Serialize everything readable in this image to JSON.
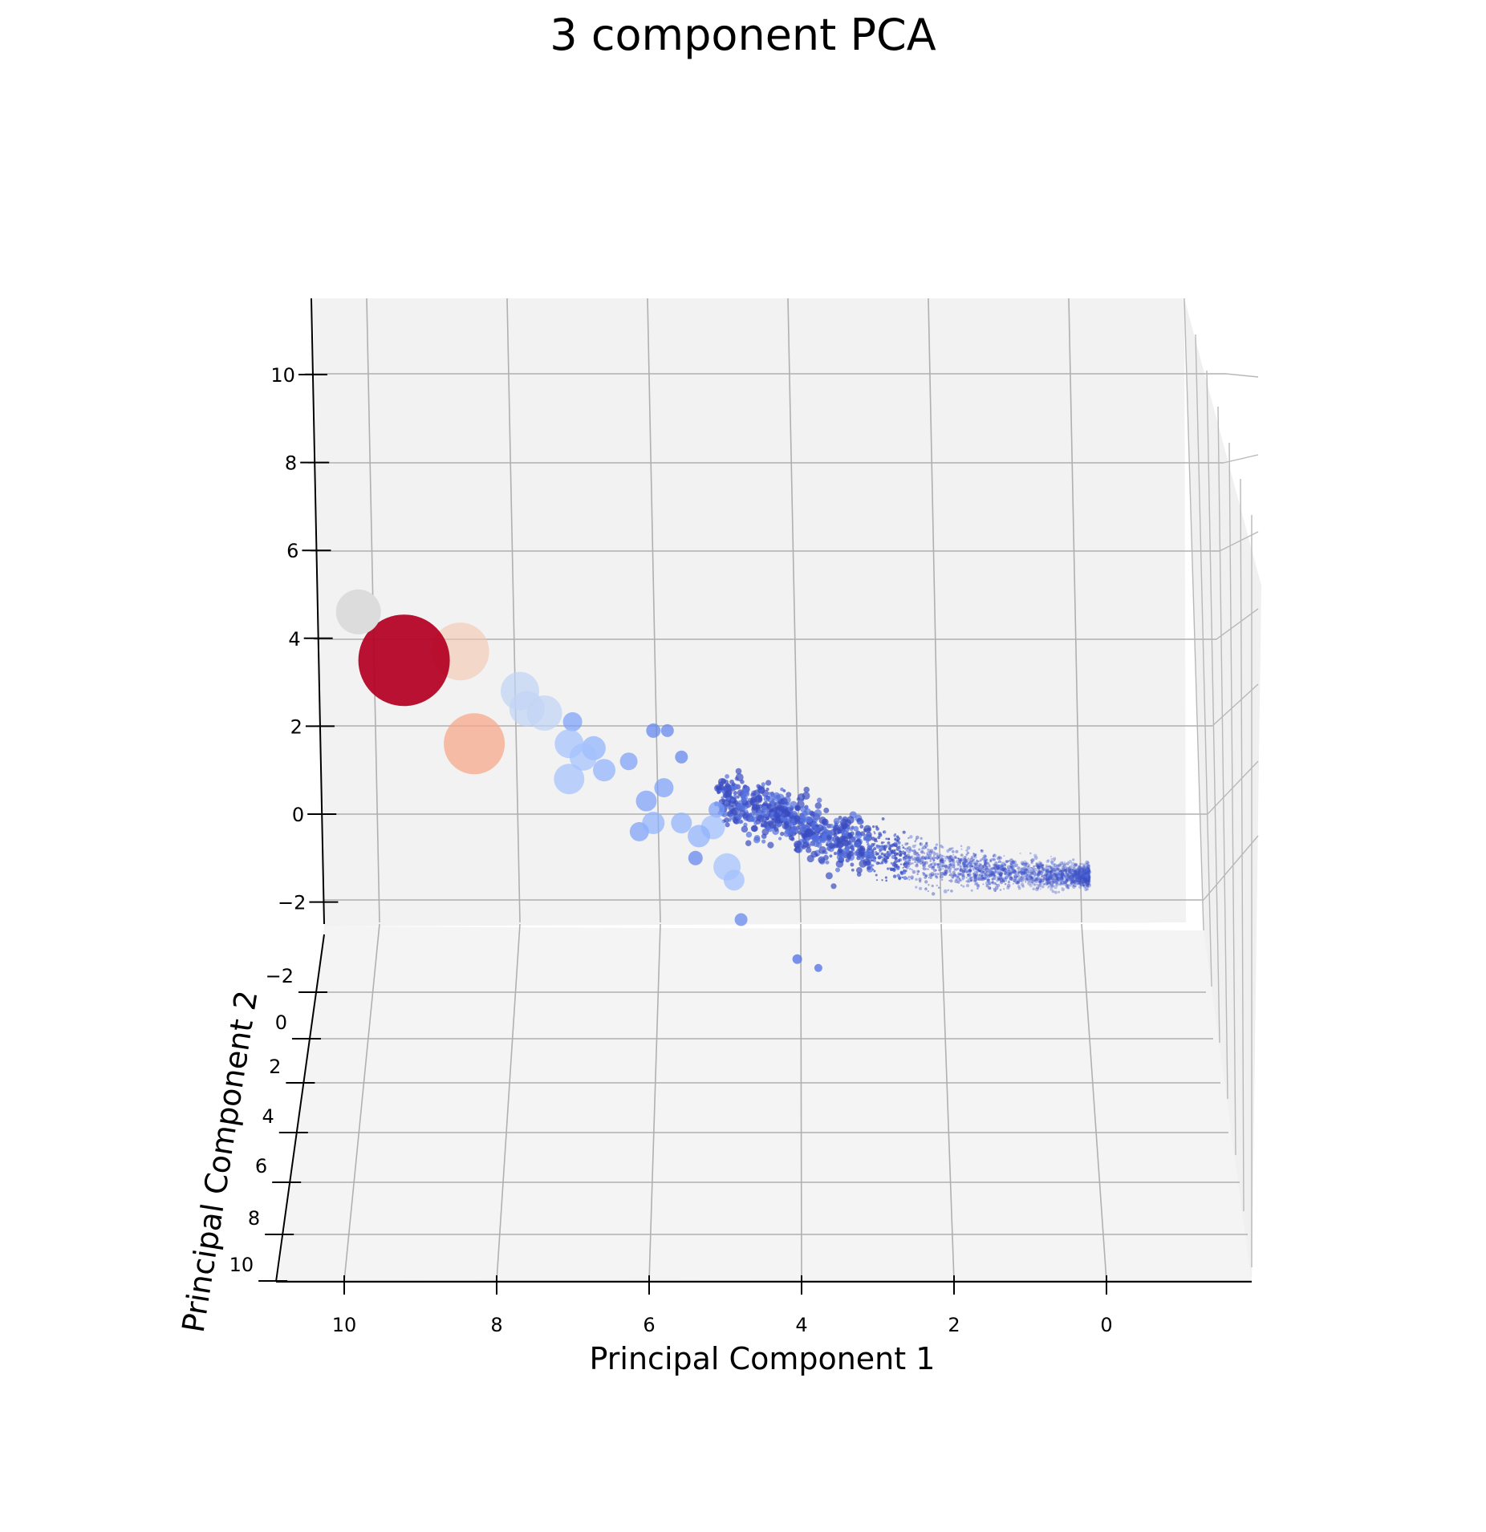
{
  "chart_data": {
    "type": "scatter",
    "projection": "3d",
    "title": "3 component PCA",
    "xlabel": "Principal Component 1",
    "ylabel": "Principal Component 2",
    "zlabel": "",
    "x_ticks": [
      "10",
      "8",
      "6",
      "4",
      "2",
      "0"
    ],
    "y_ticks": [
      "−2",
      "0",
      "2",
      "4",
      "6",
      "8",
      "10"
    ],
    "z_ticks": [
      "−2",
      "0",
      "2",
      "4",
      "6",
      "8",
      "10"
    ],
    "xlim": [
      -1.9,
      11
    ],
    "ylim": [
      -3,
      10.8
    ],
    "zlim": [
      -3,
      11.7
    ],
    "x_direction": "reversed",
    "grid": true,
    "colormap": "coolwarm",
    "colors": {
      "cold": "#3b4cc0",
      "cool": "#7b9ff9",
      "pale_blue": "#c0d4f5",
      "neutral": "#dddcdc",
      "pale_orange": "#f4c5ad",
      "warm": "#f7a889",
      "hot": "#b40426"
    },
    "series": [
      {
        "points": [
          {
            "x": 10.3,
            "y": -2.8,
            "z": 4.6,
            "size": 28,
            "color": "#dddcdc",
            "alpha": 1.0
          },
          {
            "x": 9.65,
            "y": -2.8,
            "z": 3.5,
            "size": 57,
            "color": "#b40426",
            "alpha": 0.95
          },
          {
            "x": 8.85,
            "y": -2.8,
            "z": 3.7,
            "size": 36,
            "color": "#f4c5ad",
            "alpha": 0.6
          },
          {
            "x": 8.65,
            "y": -2.8,
            "z": 1.6,
            "size": 38,
            "color": "#f7a889",
            "alpha": 0.75
          },
          {
            "x": 8.0,
            "y": -2.8,
            "z": 2.8,
            "size": 24,
            "color": "#c0d4f5",
            "alpha": 0.7
          },
          {
            "x": 7.9,
            "y": -2.8,
            "z": 2.4,
            "size": 22,
            "color": "#c0d4f5",
            "alpha": 0.7
          },
          {
            "x": 7.65,
            "y": -2.8,
            "z": 2.3,
            "size": 22,
            "color": "#c0d4f5",
            "alpha": 0.7
          },
          {
            "x": 7.3,
            "y": -2.8,
            "z": 1.6,
            "size": 18,
            "color": "#a3c2fe",
            "alpha": 0.7
          },
          {
            "x": 7.1,
            "y": -2.8,
            "z": 1.3,
            "size": 17,
            "color": "#a3c2fe",
            "alpha": 0.7
          },
          {
            "x": 7.3,
            "y": -2.8,
            "z": 0.8,
            "size": 19,
            "color": "#a3c2fe",
            "alpha": 0.7
          },
          {
            "x": 6.95,
            "y": -2.8,
            "z": 1.5,
            "size": 15,
            "color": "#8db0fe",
            "alpha": 0.7
          },
          {
            "x": 6.8,
            "y": -2.8,
            "z": 1.0,
            "size": 14,
            "color": "#8db0fe",
            "alpha": 0.7
          },
          {
            "x": 7.25,
            "y": -2.8,
            "z": 2.1,
            "size": 12,
            "color": "#7b9ff9",
            "alpha": 0.7
          },
          {
            "x": 6.45,
            "y": -2.8,
            "z": 1.2,
            "size": 11,
            "color": "#7b9ff9",
            "alpha": 0.7
          },
          {
            "x": 6.2,
            "y": -2.8,
            "z": 0.3,
            "size": 13,
            "color": "#7b9ff9",
            "alpha": 0.7
          },
          {
            "x": 6.1,
            "y": -2.8,
            "z": -0.2,
            "size": 14,
            "color": "#8db0fe",
            "alpha": 0.7
          },
          {
            "x": 6.3,
            "y": -2.8,
            "z": -0.4,
            "size": 12,
            "color": "#7b9ff9",
            "alpha": 0.7
          },
          {
            "x": 6.1,
            "y": -2.8,
            "z": 1.9,
            "size": 9,
            "color": "#6788ee",
            "alpha": 0.75
          },
          {
            "x": 5.9,
            "y": -2.8,
            "z": 1.9,
            "size": 8,
            "color": "#6788ee",
            "alpha": 0.75
          },
          {
            "x": 5.7,
            "y": -2.8,
            "z": 1.3,
            "size": 8,
            "color": "#6788ee",
            "alpha": 0.75
          },
          {
            "x": 5.95,
            "y": -2.8,
            "z": 0.6,
            "size": 12,
            "color": "#7b9ff9",
            "alpha": 0.7
          },
          {
            "x": 5.7,
            "y": -2.8,
            "z": -0.2,
            "size": 13,
            "color": "#8db0fe",
            "alpha": 0.7
          },
          {
            "x": 5.45,
            "y": -2.8,
            "z": -0.5,
            "size": 14,
            "color": "#8db0fe",
            "alpha": 0.7
          },
          {
            "x": 5.25,
            "y": -2.8,
            "z": -0.3,
            "size": 15,
            "color": "#9ebeff",
            "alpha": 0.7
          },
          {
            "x": 5.05,
            "y": -2.8,
            "z": -1.2,
            "size": 17,
            "color": "#a3c2fe",
            "alpha": 0.7
          },
          {
            "x": 4.95,
            "y": -2.8,
            "z": -1.5,
            "size": 13,
            "color": "#9ebeff",
            "alpha": 0.7
          },
          {
            "x": 5.2,
            "y": -2.8,
            "z": 0.1,
            "size": 10,
            "color": "#7b9ff9",
            "alpha": 0.7
          },
          {
            "x": 5.5,
            "y": -2.8,
            "z": -1.0,
            "size": 9,
            "color": "#6788ee",
            "alpha": 0.75
          },
          {
            "x": 4.85,
            "y": -2.8,
            "z": -2.4,
            "size": 8,
            "color": "#6788ee",
            "alpha": 0.75
          },
          {
            "x": 4.05,
            "y": -2.8,
            "z": -3.3,
            "size": 6,
            "color": "#5977e3",
            "alpha": 0.8
          },
          {
            "x": 3.75,
            "y": -2.8,
            "z": -3.5,
            "size": 5,
            "color": "#5977e3",
            "alpha": 0.8
          }
        ],
        "cluster": {
          "description_only": false,
          "count": 2600,
          "x_range": [
            -0.1,
            5.2
          ],
          "z_center_line": [
            [
              5.0,
              0.4
            ],
            [
              3.5,
              -0.6
            ],
            [
              2.0,
              -1.2
            ],
            [
              0.3,
              -1.4
            ]
          ],
          "color_range": [
            "#3b4cc0",
            "#5470de"
          ]
        }
      }
    ]
  }
}
